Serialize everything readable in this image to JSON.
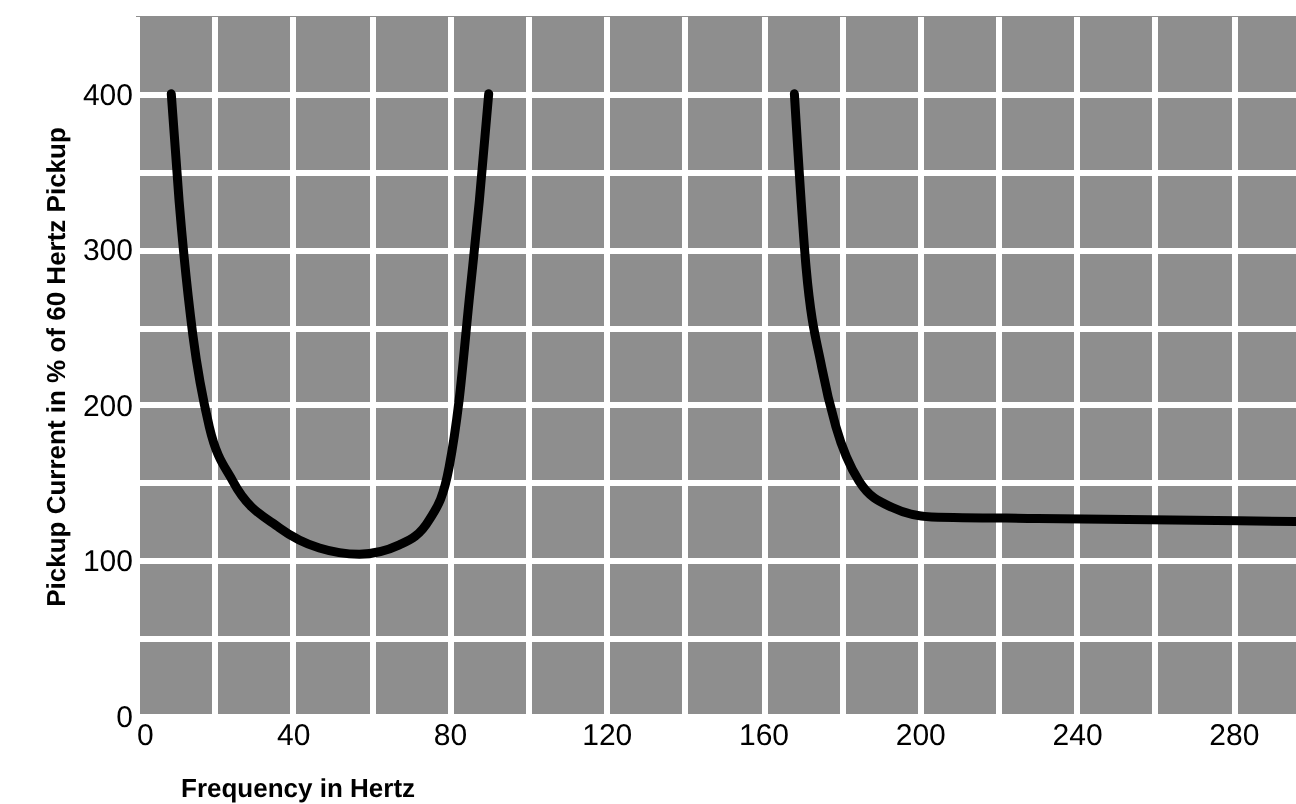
{
  "chart_data": {
    "type": "line",
    "xlabel": "Frequency in Hertz",
    "ylabel": "Pickup Current in % of 60 Hertz Pickup",
    "xlim": [
      0,
      296
    ],
    "ylim": [
      0,
      450
    ],
    "xticks": [
      0,
      {
        "value": 20,
        "label": null
      },
      40,
      {
        "value": 60,
        "label": null
      },
      80,
      {
        "value": 100,
        "label": null
      },
      120,
      {
        "value": 140,
        "label": null
      },
      160,
      {
        "value": 180,
        "label": null
      },
      200,
      {
        "value": 220,
        "label": null
      },
      240,
      {
        "value": 260,
        "label": null
      },
      280
    ],
    "yticks": [
      0,
      {
        "value": 50,
        "label": null
      },
      100,
      {
        "value": 150,
        "label": null
      },
      200,
      {
        "value": 250,
        "label": null
      },
      300,
      {
        "value": 350,
        "label": null
      },
      400
    ],
    "grid": true,
    "series": [
      {
        "color": "#000000",
        "x": [
          9,
          11,
          14.5,
          18.7,
          24.7,
          36.6,
          46.8,
          57,
          67.2,
          74.8,
          79.9,
          82.4,
          85,
          87.6,
          90
        ],
        "values": [
          400,
          331,
          245,
          186,
          151,
          121,
          108,
          104,
          110,
          126,
          160,
          202,
          267,
          331,
          400
        ]
      },
      {
        "color": "#000000",
        "x": [
          168,
          171,
          175,
          178.6,
          184.5,
          193,
          203,
          230,
          264.5,
          296
        ],
        "values": [
          400,
          288,
          224,
          186,
          151,
          134,
          128,
          127,
          126,
          125
        ]
      }
    ]
  }
}
